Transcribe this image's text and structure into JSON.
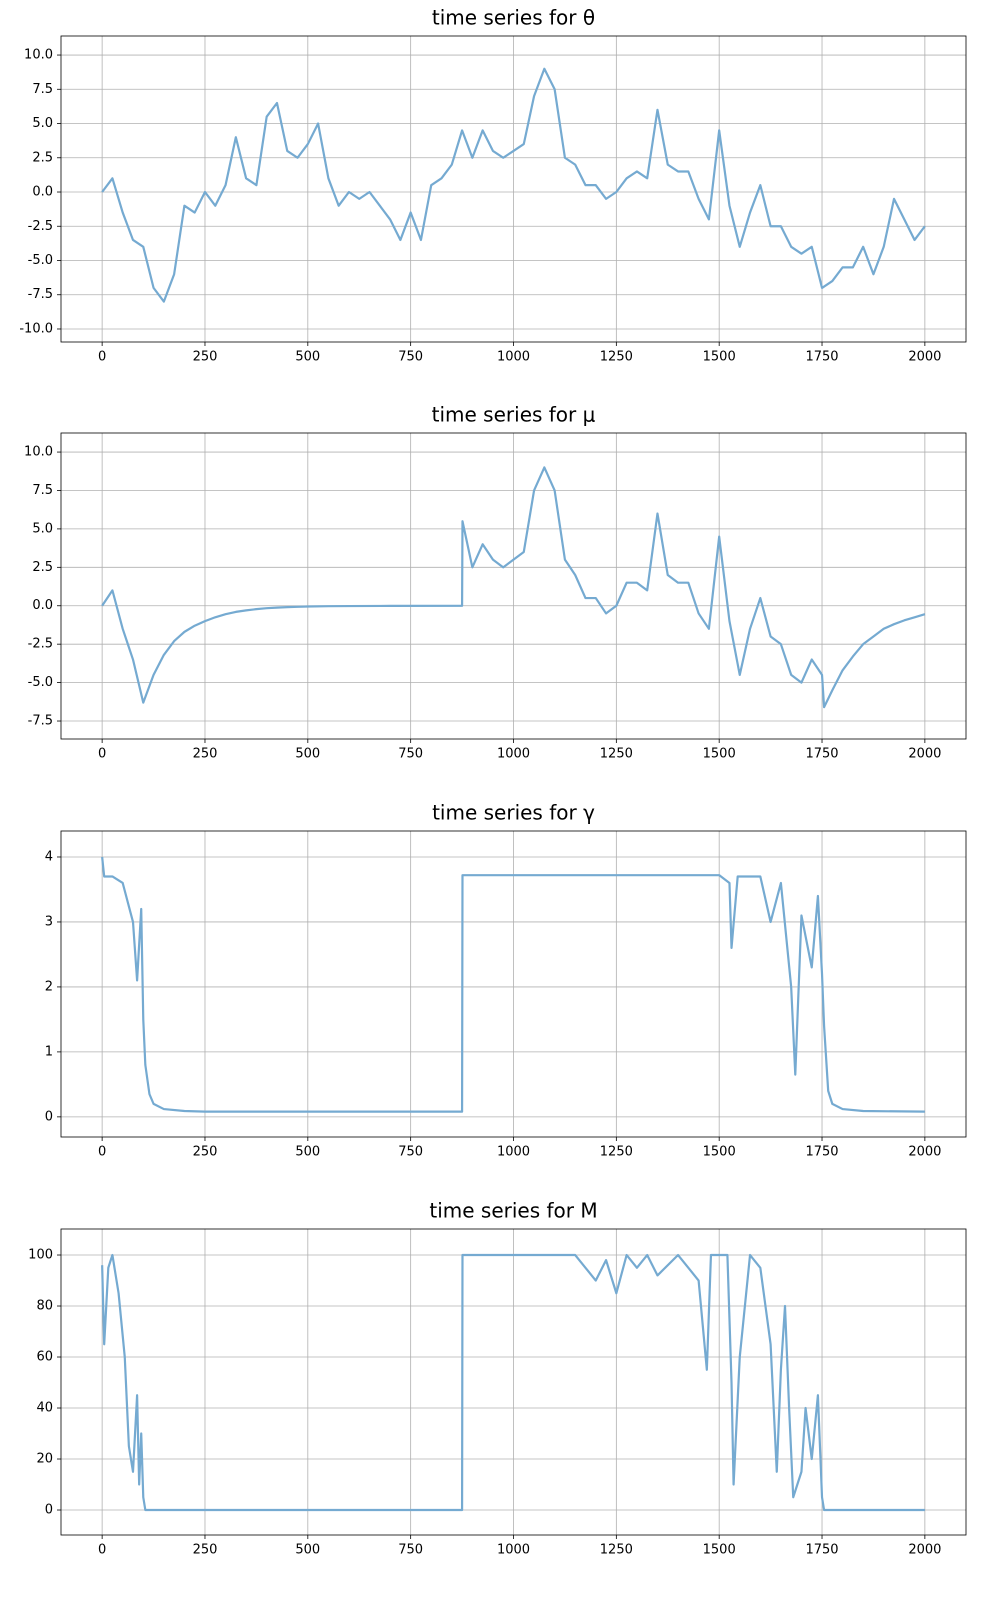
{
  "chart_data": [
    {
      "type": "line",
      "title": "time series for θ",
      "color": "#75aad1",
      "grid": true,
      "xlim": [
        -100,
        2100
      ],
      "xticks": [
        0,
        250,
        500,
        750,
        1000,
        1250,
        1500,
        1750,
        2000
      ],
      "ylim": [
        -10.95,
        11.39
      ],
      "yticks": [
        {
          "value": -10,
          "label": "-10.0"
        },
        -7.5,
        {
          "value": -5,
          "label": "-5.0"
        },
        -2.5,
        {
          "value": 0,
          "label": "0.0"
        },
        2.5,
        {
          "value": 5,
          "label": "5.0"
        },
        7.5,
        {
          "value": 10,
          "label": "10.0"
        }
      ],
      "x": [
        0,
        25,
        50,
        75,
        100,
        125,
        150,
        175,
        200,
        225,
        250,
        275,
        300,
        325,
        350,
        375,
        400,
        425,
        450,
        475,
        500,
        525,
        550,
        575,
        600,
        625,
        650,
        675,
        700,
        725,
        750,
        775,
        800,
        825,
        850,
        875,
        900,
        925,
        950,
        975,
        1000,
        1025,
        1050,
        1075,
        1100,
        1125,
        1150,
        1175,
        1200,
        1225,
        1250,
        1275,
        1300,
        1325,
        1350,
        1375,
        1400,
        1425,
        1450,
        1475,
        1500,
        1525,
        1550,
        1575,
        1600,
        1625,
        1650,
        1675,
        1700,
        1725,
        1750,
        1775,
        1800,
        1825,
        1850,
        1875,
        1900,
        1925,
        1950,
        1975,
        2000
      ],
      "values": [
        0,
        1.0,
        -1.5,
        -3.5,
        -4.0,
        -7.0,
        -8.0,
        -6.0,
        -1.0,
        -1.5,
        0,
        -1.0,
        0.5,
        4.0,
        1.0,
        0.5,
        5.5,
        6.5,
        3.0,
        2.5,
        3.5,
        5.0,
        1.0,
        -1.0,
        0,
        -0.5,
        0,
        -1.0,
        -2.0,
        -3.5,
        -1.5,
        -3.5,
        0.5,
        1.0,
        2.0,
        4.5,
        2.5,
        4.5,
        3.0,
        2.5,
        3.0,
        3.5,
        7.0,
        9.0,
        7.5,
        2.5,
        2.0,
        0.5,
        0.5,
        -0.5,
        0,
        1.0,
        1.5,
        1.0,
        6.0,
        2.0,
        1.5,
        1.5,
        -0.5,
        -2.0,
        4.5,
        -1.0,
        -4.0,
        -1.5,
        0.5,
        -2.5,
        -2.5,
        -4.0,
        -4.5,
        -4.0,
        -7.0,
        -6.5,
        -5.5,
        -5.5,
        -4.0,
        -6.0,
        -4.0,
        -0.5,
        -2.0,
        -3.5,
        -2.5
      ]
    },
    {
      "type": "line",
      "title": "time series for μ",
      "color": "#75aad1",
      "grid": true,
      "xlim": [
        -100,
        2100
      ],
      "xticks": [
        0,
        250,
        500,
        750,
        1000,
        1250,
        1500,
        1750,
        2000
      ],
      "ylim": [
        -8.67,
        11.24
      ],
      "yticks": [
        -7.5,
        {
          "value": -5,
          "label": "-5.0"
        },
        -2.5,
        {
          "value": 0,
          "label": "0.0"
        },
        2.5,
        {
          "value": 5,
          "label": "5.0"
        },
        7.5,
        {
          "value": 10,
          "label": "10.0"
        }
      ],
      "x": [
        0,
        25,
        50,
        75,
        100,
        125,
        150,
        175,
        200,
        225,
        250,
        275,
        300,
        325,
        350,
        375,
        400,
        425,
        450,
        475,
        500,
        550,
        600,
        700,
        875,
        876,
        900,
        925,
        950,
        975,
        1000,
        1025,
        1050,
        1075,
        1100,
        1125,
        1150,
        1175,
        1200,
        1225,
        1250,
        1275,
        1300,
        1325,
        1350,
        1375,
        1400,
        1425,
        1450,
        1475,
        1500,
        1525,
        1550,
        1575,
        1600,
        1625,
        1650,
        1675,
        1700,
        1725,
        1750,
        1755,
        1775,
        1800,
        1825,
        1850,
        1875,
        1900,
        1925,
        1950,
        1975,
        2000
      ],
      "values": [
        0,
        1.0,
        -1.5,
        -3.5,
        -6.3,
        -4.5,
        -3.2,
        -2.3,
        -1.7,
        -1.3,
        -1.0,
        -0.75,
        -0.55,
        -0.4,
        -0.3,
        -0.22,
        -0.16,
        -0.12,
        -0.09,
        -0.07,
        -0.05,
        -0.03,
        -0.02,
        -0.01,
        0,
        5.5,
        2.5,
        4.0,
        3.0,
        2.5,
        3.0,
        3.5,
        7.5,
        9.0,
        7.5,
        3.0,
        2.0,
        0.5,
        0.5,
        -0.5,
        0,
        1.5,
        1.5,
        1.0,
        6.0,
        2.0,
        1.5,
        1.5,
        -0.5,
        -1.5,
        4.5,
        -1.0,
        -4.5,
        -1.5,
        0.5,
        -2.0,
        -2.5,
        -4.5,
        -5.0,
        -3.5,
        -4.5,
        -6.6,
        -5.5,
        -4.2,
        -3.3,
        -2.5,
        -2.0,
        -1.5,
        -1.2,
        -0.95,
        -0.75,
        -0.55
      ]
    },
    {
      "type": "line",
      "title": "time series for γ",
      "color": "#75aad1",
      "grid": true,
      "xlim": [
        -100,
        2100
      ],
      "xticks": [
        0,
        250,
        500,
        750,
        1000,
        1250,
        1500,
        1750,
        2000
      ],
      "ylim": [
        -0.31,
        4.4
      ],
      "yticks": [
        0,
        1,
        2,
        3,
        4
      ],
      "x": [
        0,
        5,
        25,
        50,
        75,
        85,
        95,
        100,
        105,
        115,
        125,
        150,
        200,
        250,
        875,
        876,
        1500,
        1525,
        1530,
        1545,
        1600,
        1625,
        1650,
        1675,
        1685,
        1700,
        1725,
        1740,
        1750,
        1755,
        1765,
        1775,
        1800,
        1850,
        2000
      ],
      "values": [
        4.0,
        3.7,
        3.7,
        3.6,
        3.0,
        2.1,
        3.2,
        1.5,
        0.8,
        0.35,
        0.2,
        0.12,
        0.09,
        0.08,
        0.08,
        3.72,
        3.72,
        3.6,
        2.6,
        3.7,
        3.7,
        3.0,
        3.6,
        2.0,
        0.65,
        3.1,
        2.3,
        3.4,
        2.2,
        1.4,
        0.4,
        0.2,
        0.12,
        0.09,
        0.08
      ]
    },
    {
      "type": "line",
      "title": "time series for M",
      "color": "#75aad1",
      "grid": true,
      "xlim": [
        -100,
        2100
      ],
      "xticks": [
        0,
        250,
        500,
        750,
        1000,
        1250,
        1500,
        1750,
        2000
      ],
      "ylim": [
        -9.8,
        110.2
      ],
      "yticks": [
        0,
        20,
        40,
        60,
        80,
        100
      ],
      "x": [
        0,
        5,
        15,
        25,
        40,
        55,
        65,
        75,
        85,
        90,
        95,
        100,
        105,
        875,
        876,
        1150,
        1175,
        1200,
        1225,
        1250,
        1275,
        1300,
        1325,
        1350,
        1400,
        1450,
        1470,
        1480,
        1500,
        1520,
        1530,
        1535,
        1550,
        1575,
        1600,
        1625,
        1640,
        1650,
        1660,
        1670,
        1680,
        1700,
        1710,
        1725,
        1740,
        1750,
        1755,
        2000
      ],
      "values": [
        96,
        65,
        95,
        100,
        85,
        60,
        25,
        15,
        45,
        10,
        30,
        5,
        0,
        0,
        100,
        100,
        95,
        90,
        98,
        85,
        100,
        95,
        100,
        92,
        100,
        90,
        55,
        100,
        100,
        100,
        50,
        10,
        60,
        100,
        95,
        65,
        15,
        55,
        80,
        40,
        5,
        15,
        40,
        20,
        45,
        5,
        0,
        0
      ]
    }
  ]
}
